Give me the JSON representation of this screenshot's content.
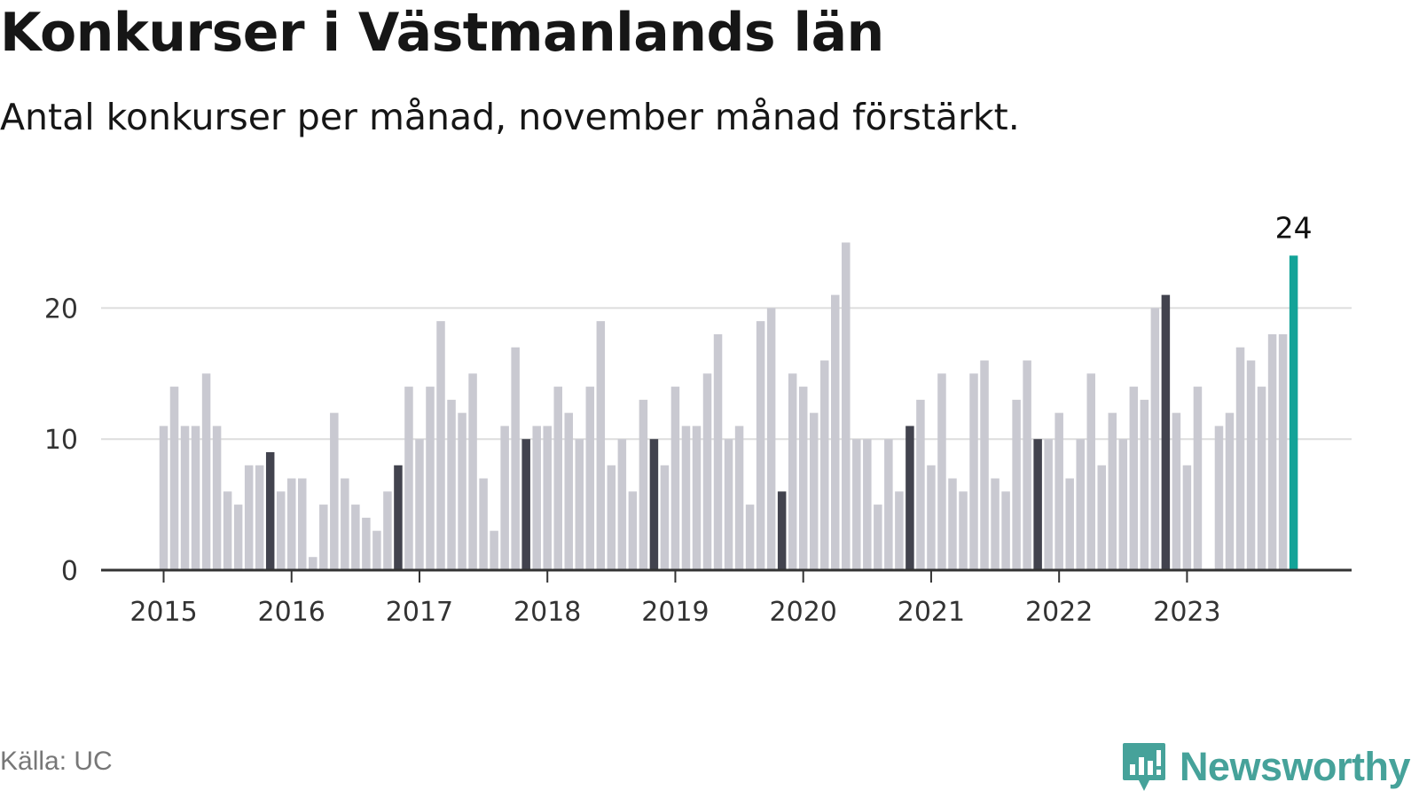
{
  "header": {
    "title": "Konkurser i Västmanlands län",
    "subtitle": "Antal konkurser per månad, november månad förstärkt."
  },
  "footer": {
    "source": "Källa: UC",
    "brand": "Newsworthy"
  },
  "colors": {
    "bar": "#c9c9d1",
    "highlight_bar": "#42434e",
    "latest_bar": "#13a398",
    "gridline": "#dddddd",
    "axis": "#333333",
    "brand": "#46a29a"
  },
  "icons": {
    "brand_logo": "bar-chart-speech-bubble-icon"
  },
  "chart_data": {
    "type": "bar",
    "title": "Konkurser i Västmanlands län",
    "subtitle": "Antal konkurser per månad, november månad förstärkt.",
    "start": "2015-01",
    "frequency": "monthly",
    "highlight_month": "november",
    "y_ticks": [
      "0",
      "10",
      "20"
    ],
    "x_ticks": [
      "2015",
      "2016",
      "2017",
      "2018",
      "2019",
      "2020",
      "2021",
      "2022",
      "2023"
    ],
    "ylim": [
      0,
      27
    ],
    "grid": true,
    "data_label": "24",
    "values": [
      11,
      14,
      11,
      11,
      15,
      11,
      6,
      5,
      8,
      8,
      9,
      6,
      7,
      7,
      1,
      5,
      12,
      7,
      5,
      4,
      3,
      6,
      8,
      14,
      10,
      14,
      19,
      13,
      12,
      15,
      7,
      3,
      11,
      17,
      10,
      11,
      11,
      14,
      12,
      10,
      14,
      19,
      8,
      10,
      6,
      13,
      10,
      8,
      14,
      11,
      11,
      15,
      18,
      10,
      11,
      5,
      19,
      20,
      6,
      15,
      14,
      12,
      16,
      21,
      25,
      10,
      10,
      5,
      10,
      6,
      11,
      13,
      8,
      15,
      7,
      6,
      15,
      16,
      7,
      6,
      13,
      16,
      10,
      10,
      12,
      7,
      10,
      15,
      8,
      12,
      10,
      14,
      13,
      20,
      21,
      12,
      8,
      14,
      0,
      11,
      12,
      17,
      16,
      14,
      18,
      18,
      24
    ]
  }
}
